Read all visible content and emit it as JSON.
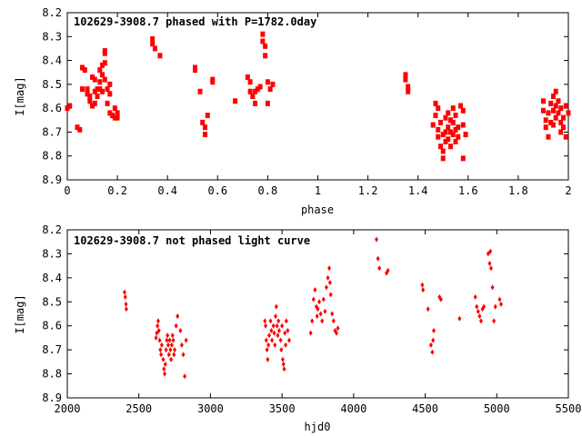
{
  "colors": {
    "points": "#ff0000",
    "axes": "#000000",
    "background": "#ffffff"
  },
  "chart_data": [
    {
      "type": "scatter",
      "title": "102629-3908.7 phased with P=1782.0day",
      "xlabel": "phase",
      "ylabel": "I[mag]",
      "xlim": [
        0,
        2
      ],
      "ylim": [
        8.2,
        8.9
      ],
      "y_inverted": true,
      "x_ticks": [
        "0",
        "0.2",
        "0.4",
        "0.6",
        "0.8",
        "1",
        "1.2",
        "1.4",
        "1.6",
        "1.8",
        "2"
      ],
      "y_ticks": [
        "8.2",
        "8.3",
        "8.4",
        "8.5",
        "8.6",
        "8.7",
        "8.8",
        "8.9"
      ],
      "grid": false,
      "marker": "square",
      "points": [
        [
          0.0,
          8.6
        ],
        [
          0.01,
          8.59
        ],
        [
          0.04,
          8.68
        ],
        [
          0.05,
          8.69
        ],
        [
          0.06,
          8.52
        ],
        [
          0.06,
          8.43
        ],
        [
          0.07,
          8.44
        ],
        [
          0.08,
          8.52
        ],
        [
          0.08,
          8.54
        ],
        [
          0.09,
          8.55
        ],
        [
          0.09,
          8.57
        ],
        [
          0.1,
          8.59
        ],
        [
          0.1,
          8.47
        ],
        [
          0.11,
          8.48
        ],
        [
          0.11,
          8.53
        ],
        [
          0.11,
          8.58
        ],
        [
          0.12,
          8.52
        ],
        [
          0.12,
          8.55
        ],
        [
          0.13,
          8.44
        ],
        [
          0.13,
          8.49
        ],
        [
          0.13,
          8.52
        ],
        [
          0.14,
          8.42
        ],
        [
          0.14,
          8.46
        ],
        [
          0.14,
          8.53
        ],
        [
          0.15,
          8.36
        ],
        [
          0.15,
          8.37
        ],
        [
          0.15,
          8.41
        ],
        [
          0.15,
          8.48
        ],
        [
          0.16,
          8.52
        ],
        [
          0.16,
          8.58
        ],
        [
          0.17,
          8.5
        ],
        [
          0.17,
          8.54
        ],
        [
          0.17,
          8.62
        ],
        [
          0.18,
          8.63
        ],
        [
          0.19,
          8.64
        ],
        [
          0.19,
          8.6
        ],
        [
          0.2,
          8.62
        ],
        [
          0.2,
          8.64
        ],
        [
          0.34,
          8.33
        ],
        [
          0.34,
          8.31
        ],
        [
          0.35,
          8.35
        ],
        [
          0.37,
          8.38
        ],
        [
          0.51,
          8.43
        ],
        [
          0.51,
          8.44
        ],
        [
          0.53,
          8.53
        ],
        [
          0.54,
          8.66
        ],
        [
          0.55,
          8.68
        ],
        [
          0.55,
          8.71
        ],
        [
          0.56,
          8.63
        ],
        [
          0.58,
          8.48
        ],
        [
          0.58,
          8.49
        ],
        [
          0.67,
          8.57
        ],
        [
          0.72,
          8.47
        ],
        [
          0.73,
          8.49
        ],
        [
          0.73,
          8.53
        ],
        [
          0.74,
          8.55
        ],
        [
          0.75,
          8.58
        ],
        [
          0.75,
          8.53
        ],
        [
          0.76,
          8.52
        ],
        [
          0.77,
          8.51
        ],
        [
          0.78,
          8.29
        ],
        [
          0.78,
          8.32
        ],
        [
          0.79,
          8.34
        ],
        [
          0.79,
          8.38
        ],
        [
          0.8,
          8.49
        ],
        [
          0.8,
          8.58
        ],
        [
          0.81,
          8.52
        ],
        [
          0.82,
          8.5
        ],
        [
          1.35,
          8.46
        ],
        [
          1.35,
          8.48
        ],
        [
          1.36,
          8.51
        ],
        [
          1.36,
          8.53
        ],
        [
          1.46,
          8.67
        ],
        [
          1.47,
          8.63
        ],
        [
          1.47,
          8.58
        ],
        [
          1.48,
          8.6
        ],
        [
          1.48,
          8.69
        ],
        [
          1.48,
          8.72
        ],
        [
          1.49,
          8.76
        ],
        [
          1.49,
          8.66
        ],
        [
          1.5,
          8.71
        ],
        [
          1.5,
          8.78
        ],
        [
          1.5,
          8.81
        ],
        [
          1.51,
          8.64
        ],
        [
          1.51,
          8.7
        ],
        [
          1.51,
          8.74
        ],
        [
          1.52,
          8.62
        ],
        [
          1.52,
          8.68
        ],
        [
          1.52,
          8.73
        ],
        [
          1.53,
          8.65
        ],
        [
          1.53,
          8.7
        ],
        [
          1.53,
          8.76
        ],
        [
          1.54,
          8.6
        ],
        [
          1.54,
          8.66
        ],
        [
          1.54,
          8.71
        ],
        [
          1.55,
          8.63
        ],
        [
          1.55,
          8.69
        ],
        [
          1.55,
          8.74
        ],
        [
          1.56,
          8.72
        ],
        [
          1.56,
          8.68
        ],
        [
          1.57,
          8.59
        ],
        [
          1.58,
          8.61
        ],
        [
          1.58,
          8.67
        ],
        [
          1.59,
          8.71
        ],
        [
          1.58,
          8.81
        ],
        [
          1.9,
          8.57
        ],
        [
          1.9,
          8.61
        ],
        [
          1.91,
          8.65
        ],
        [
          1.91,
          8.68
        ],
        [
          1.92,
          8.62
        ],
        [
          1.92,
          8.72
        ],
        [
          1.93,
          8.66
        ],
        [
          1.93,
          8.58
        ],
        [
          1.94,
          8.55
        ],
        [
          1.94,
          8.61
        ],
        [
          1.94,
          8.67
        ],
        [
          1.95,
          8.53
        ],
        [
          1.95,
          8.59
        ],
        [
          1.95,
          8.64
        ],
        [
          1.96,
          8.57
        ],
        [
          1.96,
          8.62
        ],
        [
          1.97,
          8.6
        ],
        [
          1.97,
          8.66
        ],
        [
          1.97,
          8.7
        ],
        [
          1.98,
          8.64
        ],
        [
          1.98,
          8.68
        ],
        [
          1.99,
          8.72
        ],
        [
          1.99,
          8.59
        ],
        [
          2.0,
          8.62
        ]
      ]
    },
    {
      "type": "scatter",
      "title": "102629-3908.7 not phased light curve",
      "xlabel": "hjd0",
      "ylabel": "I[mag]",
      "xlim": [
        2000,
        5500
      ],
      "ylim": [
        8.2,
        8.9
      ],
      "y_inverted": true,
      "x_ticks": [
        "2000",
        "2500",
        "3000",
        "3500",
        "4000",
        "4500",
        "5000",
        "5500"
      ],
      "y_ticks": [
        "8.2",
        "8.3",
        "8.4",
        "8.5",
        "8.6",
        "8.7",
        "8.8",
        "8.9"
      ],
      "grid": false,
      "marker": "diamond",
      "points": [
        [
          2400,
          8.46
        ],
        [
          2405,
          8.48
        ],
        [
          2410,
          8.51
        ],
        [
          2412,
          8.53
        ],
        [
          2620,
          8.65
        ],
        [
          2625,
          8.63
        ],
        [
          2630,
          8.6
        ],
        [
          2635,
          8.58
        ],
        [
          2640,
          8.62
        ],
        [
          2645,
          8.66
        ],
        [
          2650,
          8.7
        ],
        [
          2655,
          8.72
        ],
        [
          2660,
          8.68
        ],
        [
          2670,
          8.74
        ],
        [
          2675,
          8.78
        ],
        [
          2680,
          8.8
        ],
        [
          2685,
          8.76
        ],
        [
          2690,
          8.7
        ],
        [
          2695,
          8.66
        ],
        [
          2700,
          8.64
        ],
        [
          2705,
          8.68
        ],
        [
          2710,
          8.72
        ],
        [
          2715,
          8.66
        ],
        [
          2720,
          8.7
        ],
        [
          2725,
          8.74
        ],
        [
          2730,
          8.68
        ],
        [
          2735,
          8.64
        ],
        [
          2740,
          8.66
        ],
        [
          2745,
          8.72
        ],
        [
          2750,
          8.7
        ],
        [
          2760,
          8.6
        ],
        [
          2770,
          8.56
        ],
        [
          2790,
          8.62
        ],
        [
          2800,
          8.68
        ],
        [
          2810,
          8.72
        ],
        [
          2820,
          8.81
        ],
        [
          2830,
          8.66
        ],
        [
          3380,
          8.58
        ],
        [
          3385,
          8.6
        ],
        [
          3390,
          8.66
        ],
        [
          3395,
          8.7
        ],
        [
          3400,
          8.74
        ],
        [
          3405,
          8.68
        ],
        [
          3410,
          8.64
        ],
        [
          3420,
          8.58
        ],
        [
          3425,
          8.62
        ],
        [
          3430,
          8.66
        ],
        [
          3440,
          8.6
        ],
        [
          3445,
          8.63
        ],
        [
          3450,
          8.68
        ],
        [
          3455,
          8.56
        ],
        [
          3460,
          8.52
        ],
        [
          3465,
          8.6
        ],
        [
          3470,
          8.64
        ],
        [
          3475,
          8.58
        ],
        [
          3480,
          8.62
        ],
        [
          3490,
          8.66
        ],
        [
          3495,
          8.7
        ],
        [
          3500,
          8.6
        ],
        [
          3505,
          8.74
        ],
        [
          3510,
          8.76
        ],
        [
          3515,
          8.78
        ],
        [
          3520,
          8.63
        ],
        [
          3525,
          8.68
        ],
        [
          3530,
          8.58
        ],
        [
          3540,
          8.62
        ],
        [
          3550,
          8.66
        ],
        [
          3700,
          8.63
        ],
        [
          3710,
          8.58
        ],
        [
          3720,
          8.49
        ],
        [
          3730,
          8.45
        ],
        [
          3740,
          8.52
        ],
        [
          3745,
          8.56
        ],
        [
          3750,
          8.53
        ],
        [
          3760,
          8.5
        ],
        [
          3770,
          8.55
        ],
        [
          3780,
          8.58
        ],
        [
          3790,
          8.49
        ],
        [
          3800,
          8.54
        ],
        [
          3810,
          8.44
        ],
        [
          3820,
          8.4
        ],
        [
          3830,
          8.36
        ],
        [
          3835,
          8.42
        ],
        [
          3840,
          8.47
        ],
        [
          3850,
          8.55
        ],
        [
          3860,
          8.58
        ],
        [
          3870,
          8.62
        ],
        [
          3880,
          8.63
        ],
        [
          3890,
          8.61
        ],
        [
          4160,
          8.24
        ],
        [
          4170,
          8.32
        ],
        [
          4180,
          8.36
        ],
        [
          4230,
          8.38
        ],
        [
          4240,
          8.37
        ],
        [
          4480,
          8.43
        ],
        [
          4485,
          8.45
        ],
        [
          4520,
          8.53
        ],
        [
          4540,
          8.68
        ],
        [
          4550,
          8.71
        ],
        [
          4555,
          8.66
        ],
        [
          4560,
          8.62
        ],
        [
          4600,
          8.48
        ],
        [
          4610,
          8.49
        ],
        [
          4740,
          8.57
        ],
        [
          4850,
          8.48
        ],
        [
          4860,
          8.52
        ],
        [
          4870,
          8.54
        ],
        [
          4880,
          8.56
        ],
        [
          4890,
          8.58
        ],
        [
          4900,
          8.53
        ],
        [
          4910,
          8.52
        ],
        [
          4940,
          8.3
        ],
        [
          4950,
          8.34
        ],
        [
          4955,
          8.29
        ],
        [
          4960,
          8.36
        ],
        [
          4970,
          8.44
        ],
        [
          4980,
          8.58
        ],
        [
          4990,
          8.52
        ],
        [
          5020,
          8.49
        ],
        [
          5030,
          8.51
        ]
      ]
    }
  ]
}
